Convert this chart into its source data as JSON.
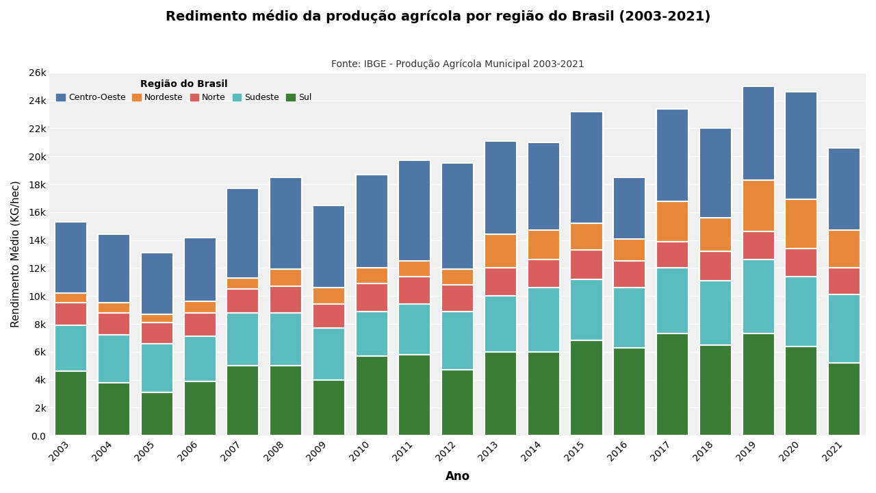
{
  "title": "Redimento médio da produção agrícola por região do Brasil (2003-2021)",
  "subtitle": "Fonte: IBGE - Produção Agrícola Municipal 2003-2021",
  "xlabel": "Ano",
  "ylabel": "Rendimento Médio (KG/hec)",
  "legend_title": "Região do Brasil",
  "years": [
    2003,
    2004,
    2005,
    2006,
    2007,
    2008,
    2009,
    2010,
    2011,
    2012,
    2013,
    2014,
    2015,
    2016,
    2017,
    2018,
    2019,
    2020,
    2021
  ],
  "regions": [
    "Sul",
    "Sudeste",
    "Norte",
    "Nordeste",
    "Centro-Oeste"
  ],
  "colors": {
    "Sul": "#3a7d35",
    "Sudeste": "#5bbcbf",
    "Norte": "#d95f5f",
    "Nordeste": "#e8883a",
    "Centro-Oeste": "#4e77a8"
  },
  "data": {
    "Sul": [
      4600,
      3800,
      3100,
      3900,
      5000,
      5000,
      4000,
      5700,
      5800,
      4700,
      6000,
      6000,
      6800,
      6300,
      7300,
      6500,
      7300,
      6400,
      5200
    ],
    "Sudeste": [
      3300,
      3400,
      3500,
      3200,
      3800,
      3800,
      3700,
      3200,
      3600,
      4200,
      4000,
      4600,
      4400,
      4300,
      4700,
      4600,
      5300,
      5000,
      4900
    ],
    "Norte": [
      1600,
      1600,
      1500,
      1700,
      1700,
      1900,
      1700,
      2000,
      2000,
      1900,
      2000,
      2000,
      2100,
      1900,
      1900,
      2100,
      2000,
      2000,
      1900
    ],
    "Nordeste": [
      700,
      700,
      600,
      800,
      800,
      1200,
      1200,
      1100,
      1100,
      1100,
      2400,
      2100,
      1900,
      1600,
      2900,
      2400,
      3700,
      3500,
      2700
    ],
    "Centro-Oeste": [
      5100,
      4900,
      4400,
      4600,
      6400,
      6600,
      5900,
      6700,
      7200,
      7600,
      6700,
      6300,
      8000,
      4400,
      6600,
      6400,
      6700,
      7700,
      5900
    ]
  },
  "ylim": [
    0,
    26000
  ],
  "yticks": [
    0,
    2000,
    4000,
    6000,
    8000,
    10000,
    12000,
    14000,
    16000,
    18000,
    20000,
    22000,
    24000,
    26000
  ],
  "background_color": "#ffffff",
  "plot_bg_color": "#f0f0f0",
  "bar_edgecolor": "white",
  "bar_linewidth": 1.5
}
